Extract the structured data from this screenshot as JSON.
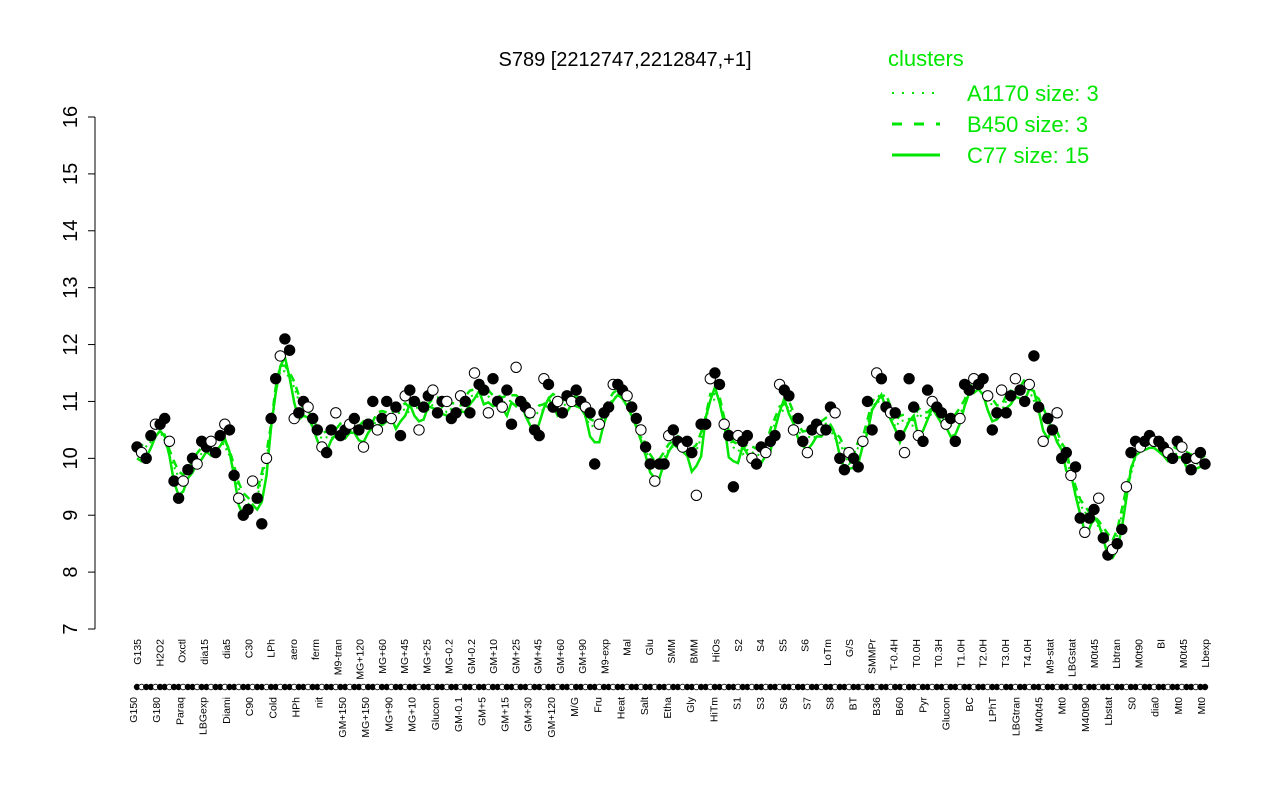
{
  "chart_data": {
    "type": "line",
    "title": "S789 [2212747,2212847,+1]",
    "ylim": [
      7,
      16
    ],
    "yticks": [
      7,
      8,
      9,
      10,
      11,
      12,
      13,
      14,
      15,
      16
    ],
    "grid": false,
    "legend": {
      "title": "clusters",
      "placement": "top-right",
      "entries": [
        {
          "label": "A1170 size: 3",
          "style": "dotted"
        },
        {
          "label": "B450 size: 3",
          "style": "dashed"
        },
        {
          "label": "C77 size: 15",
          "style": "solid"
        }
      ]
    },
    "line_color": "#00e600",
    "x_labels_upper": [
      "G135",
      "H2O2",
      "Oxctl",
      "dia15",
      "dia5",
      "C30",
      "LPh",
      "aero",
      "ferm",
      "M9-tran",
      "MG+120",
      "MG+60",
      "MG+45",
      "MG+25",
      "MG-0.2",
      "GM-0.2",
      "GM+10",
      "GM+25",
      "GM+45",
      "GM+60",
      "GM+90",
      "M9-exp",
      "Mal",
      "Glu",
      "SMM",
      "BMM",
      "HiOs",
      "S2",
      "S4",
      "S5",
      "S6",
      "LoTm",
      "G/S",
      "SMMPr",
      "T-0.4H",
      "T0.0H",
      "T0.3H",
      "T1.0H",
      "T2.0H",
      "T3.0H",
      "T4.0H",
      "M9-stat",
      "LBGstat",
      "M0t45",
      "Lbtran",
      "M0t90",
      "BI",
      "M0t45",
      "Lbexp"
    ],
    "x_labels_lower": [
      "G150",
      "G180",
      "Paraq",
      "LBGexp",
      "Diami",
      "C90",
      "Cold",
      "HPh",
      "nit",
      "GM+150",
      "MG+150",
      "MG+90",
      "MG+10",
      "Glucon",
      "GM-0.1",
      "GM+5",
      "GM+15",
      "GM+30",
      "GM+120",
      "M/G",
      "Fru",
      "Heat",
      "Salt",
      "Etha",
      "Gly",
      "HiTm",
      "S1",
      "S3",
      "S6",
      "S7",
      "S8",
      "BT",
      "B36",
      "B60",
      "Pyr",
      "Glucon",
      "BC",
      "LPhT",
      "LBGtran",
      "M40t45",
      "Mt0",
      "M40t90",
      "Lbstat",
      "S0",
      "dia0",
      "Mt0",
      "Mt0"
    ],
    "series_points": [
      10.2,
      10.1,
      10.0,
      10.4,
      10.6,
      10.6,
      10.7,
      10.3,
      9.6,
      9.3,
      9.6,
      9.8,
      10.0,
      9.9,
      10.3,
      10.2,
      10.3,
      10.1,
      10.4,
      10.6,
      10.5,
      9.7,
      9.3,
      9.0,
      9.1,
      9.6,
      9.3,
      8.85,
      10.0,
      10.7,
      11.4,
      11.8,
      12.1,
      11.9,
      10.7,
      10.8,
      11.0,
      10.9,
      10.7,
      10.5,
      10.2,
      10.1,
      10.5,
      10.8,
      10.4,
      10.5,
      10.6,
      10.7,
      10.5,
      10.2,
      10.6,
      11.0,
      10.5,
      10.7,
      11.0,
      10.7,
      10.9,
      10.4,
      11.1,
      11.2,
      11.0,
      10.5,
      10.9,
      11.1,
      11.2,
      10.8,
      11.0,
      11.0,
      10.7,
      10.8,
      11.1,
      11.0,
      10.8,
      11.5,
      11.3,
      11.2,
      10.8,
      11.4,
      11.0,
      10.9,
      11.2,
      10.6,
      11.6,
      11.0,
      10.9,
      10.8,
      10.5,
      10.4,
      11.4,
      11.3,
      10.9,
      11.0,
      10.8,
      11.1,
      11.0,
      11.2,
      11.0,
      10.9,
      10.8,
      9.9,
      10.6,
      10.8,
      10.9,
      11.3,
      11.3,
      11.2,
      11.1,
      10.9,
      10.7,
      10.5,
      10.2,
      9.9,
      9.6,
      9.9,
      9.9,
      10.4,
      10.5,
      10.3,
      10.2,
      10.3,
      10.1,
      9.35,
      10.6,
      10.6,
      11.4,
      11.5,
      11.3,
      10.6,
      10.4,
      9.5,
      10.4,
      10.3,
      10.4,
      10.0,
      9.9,
      10.2,
      10.1,
      10.3,
      10.4,
      11.3,
      11.2,
      11.1,
      10.5,
      10.7,
      10.3,
      10.1,
      10.5,
      10.6,
      10.5,
      10.5,
      10.9,
      10.8,
      10.0,
      9.8,
      10.1,
      10.0,
      9.85,
      10.3,
      11.0,
      10.5,
      11.5,
      11.4,
      10.9,
      10.8,
      10.8,
      10.4,
      10.1,
      11.4,
      10.9,
      10.4,
      10.3,
      11.2,
      11.0,
      10.9,
      10.8,
      10.6,
      10.7,
      10.3,
      10.7,
      11.3,
      11.2,
      11.4,
      11.3,
      11.4,
      11.1,
      10.5,
      10.8,
      11.2,
      10.8,
      11.1,
      11.4,
      11.2,
      11.0,
      11.3,
      11.8,
      10.9,
      10.3,
      10.7,
      10.5,
      10.8,
      10.0,
      10.1,
      9.7,
      9.85,
      8.95,
      8.7,
      8.95,
      9.1,
      9.3,
      8.6,
      8.3,
      8.4,
      8.5,
      8.75,
      9.5,
      10.1,
      10.3,
      10.2,
      10.3,
      10.4,
      10.3,
      10.3,
      10.2,
      10.1,
      10.0,
      10.3,
      10.2,
      10.0,
      9.8,
      10.0,
      10.1,
      9.9
    ],
    "y_unit_hint": "expression level"
  }
}
